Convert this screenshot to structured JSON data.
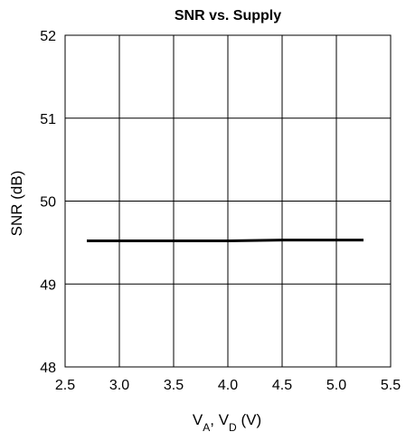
{
  "chart_data": {
    "type": "line",
    "title": "SNR vs. Supply",
    "ylabel": "SNR (dB)",
    "xlabel": {
      "v1": "V",
      "sub1": "A",
      "sep": ", V",
      "sub2": "D",
      "unit": " (V)"
    },
    "xlim": [
      2.5,
      5.5
    ],
    "ylim": [
      48,
      52
    ],
    "xticks": [
      2.5,
      3.0,
      3.5,
      4.0,
      4.5,
      5.0,
      5.5
    ],
    "xtick_labels": [
      "2.5",
      "3.0",
      "3.5",
      "4.0",
      "4.5",
      "5.0",
      "5.5"
    ],
    "yticks": [
      48,
      49,
      50,
      51,
      52
    ],
    "ytick_labels": [
      "48",
      "49",
      "50",
      "51",
      "52"
    ],
    "grid": true,
    "series": [
      {
        "x": [
          2.7,
          3.0,
          3.5,
          4.0,
          4.5,
          5.0,
          5.25
        ],
        "y": [
          49.52,
          49.52,
          49.52,
          49.52,
          49.53,
          49.53,
          49.53
        ]
      }
    ]
  }
}
